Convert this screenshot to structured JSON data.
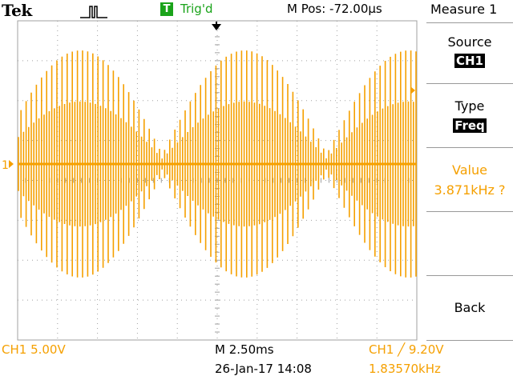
{
  "header": {
    "brand": "Tek",
    "acquisition_icon": "pulse-run-icon",
    "trigger_badge": "T",
    "trigger_status": "Trig'd",
    "horizontal_position": "M Pos: -72.00µs"
  },
  "menu": {
    "title": "Measure 1",
    "source_label": "Source",
    "source_value": "CH1",
    "type_label": "Type",
    "type_value": "Freq",
    "value_label": "Value",
    "value_reading": "3.871kHz ?",
    "back_label": "Back"
  },
  "footer": {
    "channel_scale": "CH1  5.00V",
    "timebase": "M 2.50ms",
    "datetime": "26-Jan-17 14:08",
    "trigger_setting": "CH1 ╱ 9.20V",
    "trigger_frequency": "1.83570kHz"
  },
  "markers": {
    "channel_marker": "1"
  },
  "colors": {
    "trace": "#f5a000",
    "trigger_green": "#1aa31a",
    "grid": "#a0a0a0"
  }
}
